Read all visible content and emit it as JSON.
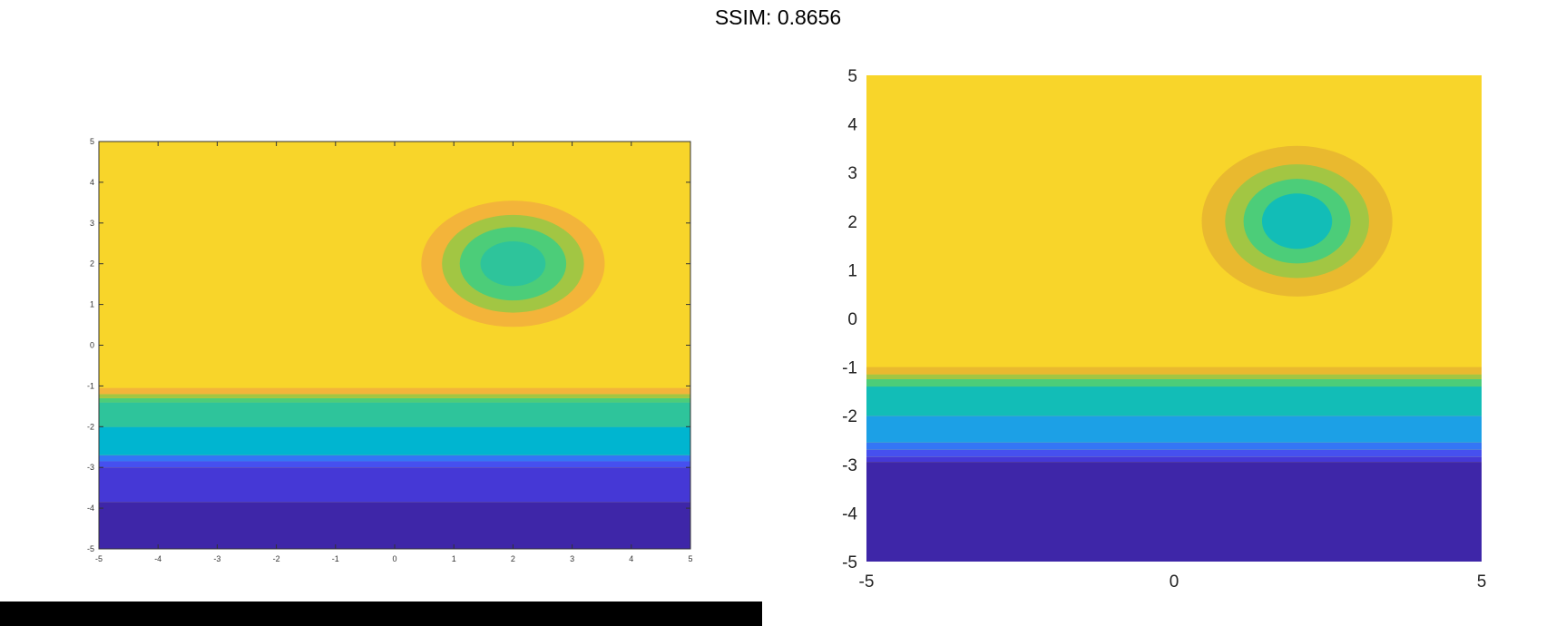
{
  "title": "SSIM: 0.8656",
  "colors": {
    "level_0": "#3e26a8",
    "level_1": "#4538d6",
    "level_2": "#4650ef",
    "level_3": "#3476f5",
    "level_4": "#1ca0e6",
    "level_5": "#00b5d0",
    "level_6": "#12bdb7",
    "level_7": "#2ec49b",
    "level_8": "#4ccd79",
    "level_9": "#a2c643",
    "level_10": "#f3b43a",
    "level_11": "#e9b92f",
    "level_12": "#f8d52a",
    "level_13": "#f9fb14"
  },
  "chart_data": [
    {
      "type": "heatmap",
      "title": "",
      "xlabel": "",
      "ylabel": "",
      "xlim": [
        -5,
        5
      ],
      "ylim": [
        -5,
        5
      ],
      "xticks": [
        "-5",
        "-4",
        "-3",
        "-2",
        "-1",
        "0",
        "1",
        "2",
        "3",
        "4",
        "5"
      ],
      "yticks": [
        "-5",
        "-4",
        "-3",
        "-2",
        "-1",
        "0",
        "1",
        "2",
        "3",
        "4",
        "5"
      ],
      "background_level": "level_12",
      "bands": [
        {
          "y0": -5,
          "y1": -3.85,
          "level": "level_0"
        },
        {
          "y0": -3.85,
          "y1": -3.0,
          "level": "level_1"
        },
        {
          "y0": -3.0,
          "y1": -2.85,
          "level": "level_2"
        },
        {
          "y0": -2.85,
          "y1": -2.7,
          "level": "level_3"
        },
        {
          "y0": -2.7,
          "y1": -2.0,
          "level": "level_5"
        },
        {
          "y0": -2.0,
          "y1": -1.4,
          "level": "level_7"
        },
        {
          "y0": -1.4,
          "y1": -1.3,
          "level": "level_8"
        },
        {
          "y0": -1.3,
          "y1": -1.2,
          "level": "level_9"
        },
        {
          "y0": -1.2,
          "y1": -1.05,
          "level": "level_10"
        }
      ],
      "blob": {
        "center": [
          2,
          2
        ],
        "rings": [
          {
            "rx": 1.55,
            "ry": 1.55,
            "level": "level_10"
          },
          {
            "rx": 1.2,
            "ry": 1.2,
            "level": "level_9"
          },
          {
            "rx": 0.9,
            "ry": 0.9,
            "level": "level_8"
          },
          {
            "rx": 0.55,
            "ry": 0.55,
            "level": "level_7"
          }
        ]
      },
      "grid": false,
      "legend": "none"
    },
    {
      "type": "heatmap",
      "title": "",
      "xlabel": "",
      "ylabel": "",
      "xlim": [
        -5,
        5
      ],
      "ylim": [
        -5,
        5
      ],
      "xticks": [
        "-5",
        "0",
        "5"
      ],
      "yticks": [
        "-5",
        "-4",
        "-3",
        "-2",
        "-1",
        "0",
        "1",
        "2",
        "3",
        "4",
        "5"
      ],
      "background_level": "level_12",
      "bands": [
        {
          "y0": -5,
          "y1": -2.95,
          "level": "level_0"
        },
        {
          "y0": -2.95,
          "y1": -2.85,
          "level": "level_1"
        },
        {
          "y0": -2.85,
          "y1": -2.7,
          "level": "level_2"
        },
        {
          "y0": -2.7,
          "y1": -2.55,
          "level": "level_3"
        },
        {
          "y0": -2.55,
          "y1": -2.0,
          "level": "level_4"
        },
        {
          "y0": -2.0,
          "y1": -1.4,
          "level": "level_6"
        },
        {
          "y0": -1.4,
          "y1": -1.25,
          "level": "level_8"
        },
        {
          "y0": -1.25,
          "y1": -1.15,
          "level": "level_9"
        },
        {
          "y0": -1.15,
          "y1": -1.0,
          "level": "level_11"
        }
      ],
      "blob": {
        "center": [
          2,
          2
        ],
        "rings": [
          {
            "rx": 1.55,
            "ry": 1.55,
            "level": "level_11"
          },
          {
            "rx": 1.17,
            "ry": 1.17,
            "level": "level_9"
          },
          {
            "rx": 0.87,
            "ry": 0.87,
            "level": "level_8"
          },
          {
            "rx": 0.57,
            "ry": 0.57,
            "level": "level_6"
          }
        ]
      },
      "grid": false,
      "legend": "none"
    }
  ]
}
